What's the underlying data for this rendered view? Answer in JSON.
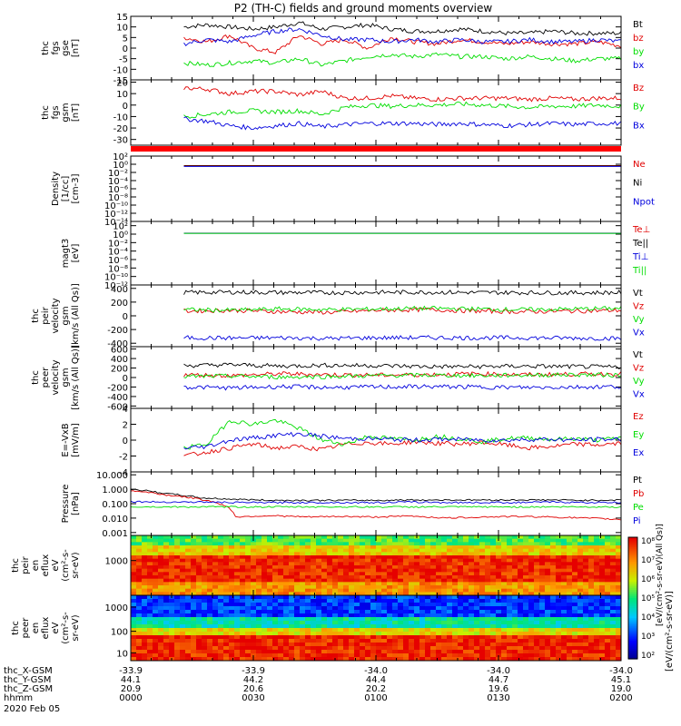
{
  "title": "P2 (TH-C) fields and ground moments overview",
  "colors": {
    "black": "#000000",
    "red": "#e00000",
    "green": "#00dd00",
    "blue": "#0000dd",
    "bar_red": "#ff0000"
  },
  "x_axis": {
    "x_start": 0,
    "x_end": 120,
    "tick_positions": [
      0,
      30,
      60,
      90,
      120
    ],
    "rows": [
      {
        "label": "thc_X-GSM",
        "values": [
          "-33.9",
          "-33.9",
          "-34.0",
          "-34.0",
          "-34.0"
        ]
      },
      {
        "label": "thc_Y-GSM",
        "values": [
          "44.1",
          "44.2",
          "44.4",
          "44.7",
          "45.1"
        ]
      },
      {
        "label": "thc_Z-GSM",
        "values": [
          "20.9",
          "20.6",
          "20.2",
          "19.6",
          "19.0"
        ]
      },
      {
        "label": "hhmm",
        "values": [
          "0000",
          "0030",
          "0100",
          "0130",
          "0200"
        ]
      }
    ],
    "date": "2020 Feb 05"
  },
  "colorbar": {
    "tick_labels": [
      "10²",
      "10³",
      "10⁴",
      "10⁵",
      "10⁶",
      "10⁷",
      "10⁸"
    ],
    "label": "[eV/(cm²-s-sr-eV)]",
    "label2": "[eV/(cm²-s-sr-eV)(All Qs)]"
  },
  "chart_data": [
    {
      "type": "line",
      "ylabel": [
        "thc",
        "fgs",
        "gse",
        "[nT]"
      ],
      "ylim": [
        -15,
        15
      ],
      "tick_values": [
        -15,
        -10,
        -5,
        0,
        5,
        10,
        15
      ],
      "tick_labels": [
        "-15",
        "-10",
        "-5",
        "0",
        "5",
        "10",
        "15"
      ],
      "start": 13,
      "series": [
        {
          "name": "Bt",
          "color": "black",
          "values": [
            10,
            11,
            10,
            9,
            10,
            12,
            9,
            10,
            11,
            9,
            8,
            8,
            9,
            8,
            7,
            7,
            8,
            7,
            7,
            7
          ]
        },
        {
          "name": "bz",
          "color": "red",
          "values": [
            5,
            3,
            6,
            0,
            -2,
            6,
            2,
            4,
            0,
            5,
            3,
            2,
            4,
            3,
            2,
            3,
            2,
            2,
            3,
            1
          ]
        },
        {
          "name": "by",
          "color": "green",
          "values": [
            -7,
            -8,
            -7,
            -6,
            -7,
            -5,
            -8,
            -6,
            -4,
            -3,
            -4,
            -3,
            -4,
            -4,
            -5,
            -4,
            -5,
            -6,
            -5,
            -5
          ]
        },
        {
          "name": "bx",
          "color": "blue",
          "values": [
            2,
            4,
            3,
            6,
            8,
            9,
            6,
            4,
            4,
            3,
            4,
            3,
            4,
            3,
            3,
            4,
            3,
            3,
            4,
            3
          ]
        }
      ]
    },
    {
      "type": "line",
      "ylabel": [
        "thc",
        "fgs",
        "gsm",
        "[nT]"
      ],
      "ylim": [
        -35,
        22
      ],
      "tick_values": [
        -30,
        -20,
        -10,
        0,
        10,
        20
      ],
      "tick_labels": [
        "-30",
        "-20",
        "-10",
        "0",
        "10",
        "20"
      ],
      "start": 13,
      "series": [
        {
          "name": "Bz",
          "color": "red",
          "values": [
            15,
            14,
            10,
            12,
            12,
            9,
            12,
            6,
            6,
            8,
            6,
            5,
            6,
            6,
            6,
            5,
            6,
            5,
            6,
            6
          ]
        },
        {
          "name": "By",
          "color": "green",
          "values": [
            -10,
            -8,
            -6,
            -5,
            -6,
            -5,
            -8,
            -2,
            0,
            -1,
            0,
            0,
            1,
            0,
            -1,
            -2,
            -1,
            -1,
            0,
            -1
          ]
        },
        {
          "name": "Bx",
          "color": "blue",
          "values": [
            -12,
            -14,
            -18,
            -20,
            -18,
            -16,
            -19,
            -17,
            -16,
            -16,
            -16,
            -17,
            -16,
            -17,
            -18,
            -17,
            -16,
            -17,
            -16,
            -16
          ]
        }
      ]
    },
    {
      "type": "line",
      "ylabel": [
        "Density",
        "[1/cc]",
        "[cm-3]"
      ],
      "ylog": true,
      "ylim": [
        -14,
        2
      ],
      "tick_values": [
        2,
        0,
        -2,
        -4,
        -6,
        -8,
        -10,
        -12,
        -14
      ],
      "tick_labels": [
        "10²",
        "10⁰",
        "10⁻²",
        "10⁻⁴",
        "10⁻⁶",
        "10⁻⁸",
        "10⁻¹⁰",
        "10⁻¹²",
        "10⁻¹⁴"
      ],
      "start": 13,
      "series": [
        {
          "name": "Ne",
          "color": "red",
          "values": [
            0.5,
            0.5,
            0.5,
            0.5,
            0.5,
            0.5,
            0.5,
            0.5,
            0.5,
            0.5
          ]
        },
        {
          "name": "Ni",
          "color": "black",
          "values": [
            0.4,
            0.4,
            0.4,
            0.4,
            0.4,
            0.4,
            0.4,
            0.4,
            0.4,
            0.4
          ]
        },
        {
          "name": "Npot",
          "color": "blue",
          "values": [
            0.3,
            0.3,
            0.3,
            0.3,
            0.3,
            0.3,
            0.3,
            0.3,
            0.3,
            0.3
          ]
        }
      ]
    },
    {
      "type": "line",
      "ylabel": [
        "magt3",
        "[eV]"
      ],
      "ylog": true,
      "ylim": [
        -12,
        3
      ],
      "tick_values": [
        2,
        0,
        -2,
        -4,
        -6,
        -8,
        -10,
        -12
      ],
      "tick_labels": [
        "10²",
        "10⁰",
        "10⁻²",
        "10⁻⁴",
        "10⁻⁶",
        "10⁻⁸",
        "10⁻¹⁰",
        "10⁻¹²"
      ],
      "start": 13,
      "series": [
        {
          "name": "Te⊥",
          "color": "red",
          "values": [
            1.6,
            1.6,
            1.6,
            1.6,
            1.6,
            1.6,
            1.6,
            1.6
          ]
        },
        {
          "name": "Te||",
          "color": "black",
          "values": [
            1.7,
            1.7,
            1.7,
            1.7,
            1.7,
            1.7,
            1.7,
            1.7
          ]
        },
        {
          "name": "Ti⊥",
          "color": "blue",
          "values": [
            1.5,
            1.5,
            1.5,
            1.5,
            1.5,
            1.5,
            1.5,
            1.5
          ]
        },
        {
          "name": "Ti||",
          "color": "green",
          "values": [
            1.45,
            1.45,
            1.45,
            1.45,
            1.45,
            1.45,
            1.45,
            1.45
          ]
        }
      ]
    },
    {
      "type": "line",
      "ylabel": [
        "thc",
        "peir",
        "velocity",
        "gsm",
        "[km/s (All Qs)]"
      ],
      "ylim": [
        -450,
        450
      ],
      "tick_values": [
        -400,
        -200,
        0,
        200,
        400
      ],
      "tick_labels": [
        "-400",
        "-200",
        "0",
        "200",
        "400"
      ],
      "start": 13,
      "series": [
        {
          "name": "Vt",
          "color": "black",
          "values": [
            340,
            345,
            340,
            338,
            342,
            345,
            340,
            338,
            336,
            340
          ]
        },
        {
          "name": "Vz",
          "color": "red",
          "values": [
            70,
            80,
            60,
            50,
            80,
            90,
            70,
            60,
            70,
            80
          ]
        },
        {
          "name": "Vy",
          "color": "green",
          "values": [
            90,
            80,
            100,
            90,
            100,
            110,
            100,
            90,
            100,
            110
          ]
        },
        {
          "name": "Vx",
          "color": "blue",
          "values": [
            -320,
            -325,
            -320,
            -330,
            -320,
            -318,
            -322,
            -320,
            -325,
            -330
          ]
        }
      ]
    },
    {
      "type": "line",
      "ylabel": [
        "thc",
        "peer",
        "velocity",
        "gsm",
        "[km/s (All Qs)]"
      ],
      "ylim": [
        -650,
        650
      ],
      "tick_values": [
        -600,
        -400,
        -200,
        0,
        200,
        400,
        600
      ],
      "tick_labels": [
        "-600",
        "-400",
        "-200",
        "0",
        "200",
        "400",
        "600"
      ],
      "start": 13,
      "series": [
        {
          "name": "Vt",
          "color": "black",
          "values": [
            250,
            270,
            240,
            260,
            250,
            230,
            230,
            240,
            230,
            220
          ]
        },
        {
          "name": "Vz",
          "color": "red",
          "values": [
            60,
            40,
            80,
            60,
            50,
            60,
            80,
            60,
            70,
            80
          ]
        },
        {
          "name": "Vy",
          "color": "green",
          "values": [
            20,
            30,
            10,
            20,
            40,
            50,
            40,
            50,
            60,
            50
          ]
        },
        {
          "name": "Vx",
          "color": "blue",
          "values": [
            -200,
            -220,
            -190,
            -210,
            -200,
            -190,
            -200,
            -210,
            -200,
            -190
          ]
        }
      ]
    },
    {
      "type": "line",
      "ylabel": [
        "E=-VxB",
        "[mV/m]"
      ],
      "ylim": [
        -4,
        4
      ],
      "tick_values": [
        -4,
        -2,
        0,
        2,
        4
      ],
      "tick_labels": [
        "-4",
        "-2",
        "0",
        "2",
        "4"
      ],
      "start": 13,
      "series": [
        {
          "name": "Ez",
          "color": "red",
          "values": [
            -2,
            -1.5,
            -1,
            -0.5,
            -1,
            -0.8,
            -1.2,
            -0.5,
            -0.3,
            -0.5,
            -0.2,
            -0.4,
            -0.5,
            -0.3,
            -0.6,
            -1,
            -0.8,
            -0.5,
            -0.6,
            -0.4
          ]
        },
        {
          "name": "Ey",
          "color": "green",
          "values": [
            -1,
            -0.5,
            2.5,
            2,
            2.5,
            1.5,
            0,
            -0.5,
            0.5,
            0.2,
            0,
            0.5,
            0.2,
            -0.2,
            0.2,
            0.3,
            0.1,
            0.2,
            0,
            0.3
          ]
        },
        {
          "name": "Ex",
          "color": "blue",
          "values": [
            -1,
            -0.8,
            0,
            0.3,
            0.6,
            0.8,
            0.5,
            0.2,
            0.2,
            0.1,
            0,
            0.1,
            0.1,
            0,
            0,
            0.1,
            0.1,
            0,
            0.1,
            0.1
          ]
        }
      ]
    },
    {
      "type": "line",
      "ylabel": [
        "Pressure",
        "[nPa]"
      ],
      "ylog": true,
      "ylim": [
        -3.2,
        1.2
      ],
      "tick_values": [
        1,
        0,
        -1,
        -2,
        -3
      ],
      "tick_labels": [
        "10.000",
        "1.000",
        "0.100",
        "0.010",
        "0.001"
      ],
      "start": 0,
      "series": [
        {
          "name": "Pt",
          "color": "black",
          "values": [
            1.0,
            0.5,
            0.25,
            0.2,
            0.17,
            0.17,
            0.17,
            0.17,
            0.18,
            0.18,
            0.18,
            0.18,
            0.18,
            0.17,
            0.18
          ]
        },
        {
          "name": "Pb",
          "color": "red",
          "values": [
            0.8,
            0.4,
            0.2,
            0.012,
            0.015,
            0.012,
            0.013,
            0.012,
            0.014,
            0.01,
            0.012,
            0.013,
            0.012,
            0.01,
            0.008
          ]
        },
        {
          "name": "Pe",
          "color": "green",
          "values": [
            0.06,
            0.06,
            0.06,
            0.06,
            0.06,
            0.06,
            0.06,
            0.06,
            0.06,
            0.06,
            0.06,
            0.06,
            0.06,
            0.06,
            0.06
          ]
        },
        {
          "name": "Pi",
          "color": "blue",
          "values": [
            0.14,
            0.13,
            0.13,
            0.12,
            0.12,
            0.12,
            0.12,
            0.12,
            0.13,
            0.12,
            0.12,
            0.12,
            0.13,
            0.12,
            0.12
          ]
        }
      ]
    },
    {
      "type": "heatmap",
      "ylabel": [
        "thc",
        "peir",
        "en",
        "eflux",
        "eV",
        "(cm²-s-",
        "sr-eV)"
      ],
      "ylog": true,
      "tick_values": [
        1000
      ],
      "tick_labels": [
        "1000"
      ]
    },
    {
      "type": "heatmap",
      "ylabel": [
        "thc",
        "peer",
        "en",
        "eflux",
        "eV",
        "(cm²-s-",
        "sr-eV)"
      ],
      "ylog": true,
      "tick_values": [
        1000,
        100,
        10
      ],
      "tick_labels": [
        "1000",
        "100",
        "10"
      ]
    }
  ]
}
